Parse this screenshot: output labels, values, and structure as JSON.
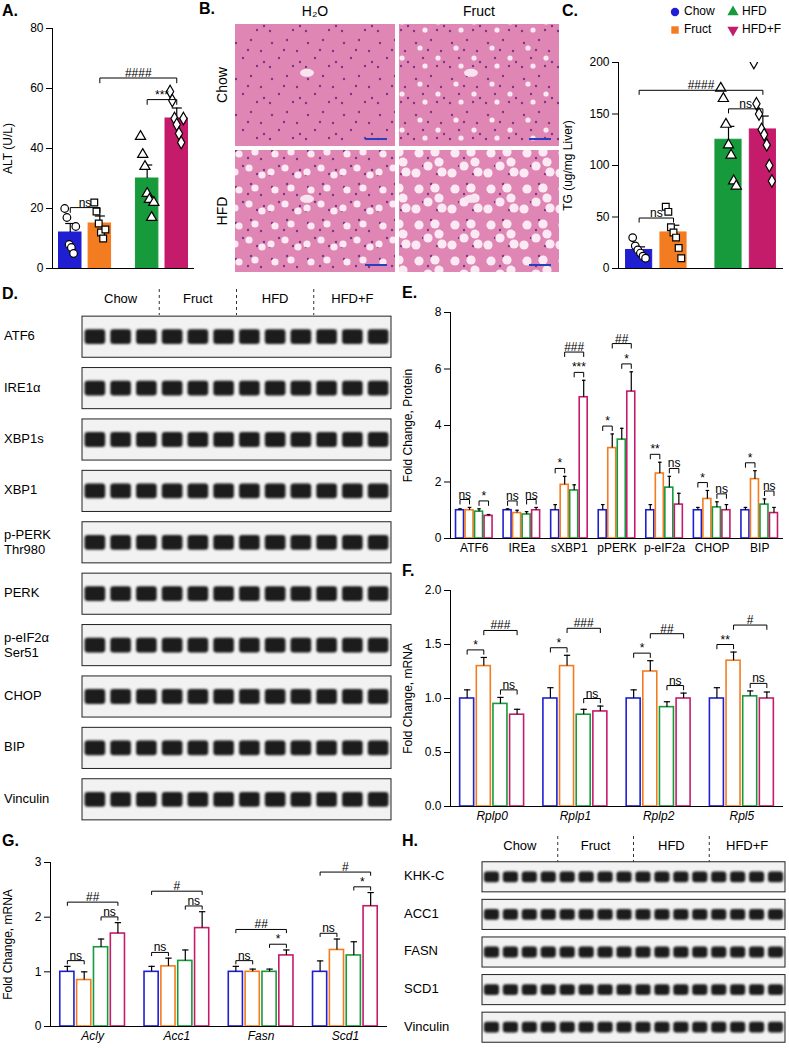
{
  "chart_data": [
    {
      "type": "bar",
      "title": "A.",
      "categories": [
        "Chow",
        "Fruct",
        "HFD",
        "HFD+F"
      ],
      "values": [
        12,
        15,
        30,
        50
      ],
      "errors": [
        3,
        2.5,
        4.5,
        3.5
      ],
      "points": [
        [
          20,
          17,
          8,
          7,
          5,
          14
        ],
        [
          22,
          19,
          15,
          12,
          10,
          13
        ],
        [
          44,
          38,
          34,
          25,
          23,
          17,
          22
        ],
        [
          59,
          56,
          50,
          48,
          45,
          42,
          50
        ]
      ],
      "point_markers": [
        "circle",
        "square",
        "triangle",
        "diamond"
      ],
      "colors": [
        "#1f1fd1",
        "#f47c20",
        "#179a3c",
        "#c51b6b"
      ],
      "ylabel": "ALT (U/L)",
      "ylim": [
        0,
        80
      ],
      "yticks": [
        0,
        20,
        40,
        60,
        80
      ],
      "tick_labels": "y",
      "annotations": [
        {
          "text": "ns",
          "from": "Chow",
          "to": "Fruct"
        },
        {
          "text": "***",
          "from": "HFD",
          "to": "HFD+F"
        },
        {
          "text": "####",
          "from": "Fruct",
          "to": "HFD+F"
        }
      ]
    },
    {
      "type": "bar",
      "title": "C.",
      "categories": [
        "Chow",
        "Fruct",
        "HFD",
        "HFD+F"
      ],
      "values": [
        18,
        35,
        125,
        135
      ],
      "errors": [
        3,
        7,
        13,
        13
      ],
      "points": [
        [
          30,
          22,
          18,
          15,
          12,
          10
        ],
        [
          60,
          55,
          40,
          35,
          30,
          20,
          10
        ],
        [
          175,
          165,
          140,
          120,
          110,
          85,
          80
        ],
        [
          200,
          160,
          150,
          135,
          130,
          120,
          100,
          85
        ]
      ],
      "point_markers": [
        "circle",
        "square",
        "triangle",
        "diamond"
      ],
      "colors": [
        "#1f1fd1",
        "#f47c20",
        "#179a3c",
        "#c51b6b"
      ],
      "ylabel": "TG (ug/mg Liver)",
      "ylim": [
        0,
        200
      ],
      "yticks": [
        0,
        50,
        100,
        150,
        200
      ],
      "tick_labels": "y",
      "annotations": [
        {
          "text": "ns",
          "from": "Chow",
          "to": "Fruct"
        },
        {
          "text": "ns",
          "from": "HFD",
          "to": "HFD+F"
        },
        {
          "text": "####",
          "from": "Chow",
          "to": "HFD+F"
        }
      ]
    },
    {
      "type": "bar",
      "title": "E.",
      "categories": [
        "ATF6",
        "IREa",
        "sXBP1",
        "pPERK",
        "p-eIF2a",
        "CHOP",
        "BIP"
      ],
      "series": [
        {
          "name": "Chow",
          "color": "#1f1fd1",
          "values": [
            1,
            1,
            1,
            1,
            1,
            1,
            1
          ],
          "errors": [
            0.05,
            0.05,
            0.2,
            0.2,
            0.2,
            0.1,
            0.1
          ]
        },
        {
          "name": "Fruct",
          "color": "#f47c20",
          "values": [
            1.0,
            0.9,
            1.9,
            3.2,
            2.3,
            1.4,
            2.1
          ],
          "errors": [
            0.1,
            0.1,
            0.3,
            0.5,
            0.4,
            0.3,
            0.3
          ]
        },
        {
          "name": "HFD",
          "color": "#179a3c",
          "values": [
            0.95,
            0.85,
            1.7,
            3.5,
            1.8,
            1.1,
            1.2
          ],
          "errors": [
            0.1,
            0.1,
            0.2,
            0.4,
            0.4,
            0.2,
            0.2
          ]
        },
        {
          "name": "HFD+F",
          "color": "#c51b6b",
          "values": [
            0.8,
            1.0,
            5.0,
            5.2,
            1.2,
            1.0,
            0.9
          ],
          "errors": [
            0.05,
            0.1,
            0.6,
            0.7,
            0.4,
            0.2,
            0.2
          ]
        }
      ],
      "ylabel": "Fold Change, Protein",
      "ylim": [
        0,
        8
      ],
      "yticks": [
        0,
        2,
        4,
        6,
        8
      ],
      "annotations": [
        {
          "category": "ATF6",
          "text": "ns",
          "from": "Chow",
          "to": "Fruct"
        },
        {
          "category": "ATF6",
          "text": "*",
          "from": "HFD",
          "to": "HFD+F"
        },
        {
          "category": "IREa",
          "text": "ns",
          "from": "Chow",
          "to": "Fruct"
        },
        {
          "category": "IREa",
          "text": "ns",
          "from": "HFD",
          "to": "HFD+F"
        },
        {
          "category": "sXBP1",
          "text": "*",
          "from": "Chow",
          "to": "Fruct"
        },
        {
          "category": "sXBP1",
          "text": "***",
          "from": "HFD",
          "to": "HFD+F"
        },
        {
          "category": "sXBP1",
          "text": "###",
          "from": "Fruct",
          "to": "HFD+F"
        },
        {
          "category": "pPERK",
          "text": "*",
          "from": "Chow",
          "to": "Fruct"
        },
        {
          "category": "pPERK",
          "text": "*",
          "from": "HFD",
          "to": "HFD+F"
        },
        {
          "category": "pPERK",
          "text": "##",
          "from": "Fruct",
          "to": "HFD+F"
        },
        {
          "category": "p-eIF2a",
          "text": "**",
          "from": "Chow",
          "to": "Fruct"
        },
        {
          "category": "p-eIF2a",
          "text": "ns",
          "from": "HFD",
          "to": "HFD+F"
        },
        {
          "category": "CHOP",
          "text": "*",
          "from": "Chow",
          "to": "Fruct"
        },
        {
          "category": "CHOP",
          "text": "ns",
          "from": "HFD",
          "to": "HFD+F"
        },
        {
          "category": "BIP",
          "text": "*",
          "from": "Chow",
          "to": "Fruct"
        },
        {
          "category": "BIP",
          "text": "ns",
          "from": "HFD",
          "to": "HFD+F"
        }
      ]
    },
    {
      "type": "bar",
      "title": "F.",
      "categories": [
        "Rplp0",
        "Rplp1",
        "Rplp2",
        "Rpl5"
      ],
      "series": [
        {
          "name": "Chow",
          "color": "#1f1fd1",
          "values": [
            1,
            1,
            1,
            1
          ],
          "errors": [
            0.08,
            0.1,
            0.08,
            0.1
          ]
        },
        {
          "name": "Fruct",
          "color": "#f47c20",
          "values": [
            1.3,
            1.3,
            1.25,
            1.35
          ],
          "errors": [
            0.08,
            0.1,
            0.1,
            0.08
          ]
        },
        {
          "name": "HFD",
          "color": "#179a3c",
          "values": [
            0.95,
            0.85,
            0.92,
            1.02
          ],
          "errors": [
            0.06,
            0.05,
            0.05,
            0.05
          ]
        },
        {
          "name": "HFD+F",
          "color": "#c51b6b",
          "values": [
            0.85,
            0.88,
            1.0,
            1.0
          ],
          "errors": [
            0.05,
            0.05,
            0.05,
            0.06
          ]
        }
      ],
      "ylabel": "Fold Change, mRNA",
      "ylim": [
        0,
        2
      ],
      "yticks": [
        {
          "value": 0,
          "label": "0.0"
        },
        0.5,
        {
          "value": 1,
          "label": "1.0"
        },
        1.5,
        {
          "value": 2,
          "label": "2.0"
        }
      ],
      "annotations": [
        {
          "category": "Rplp0",
          "text": "*",
          "from": "Chow",
          "to": "Fruct"
        },
        {
          "category": "Rplp0",
          "text": "ns",
          "from": "HFD",
          "to": "HFD+F"
        },
        {
          "category": "Rplp0",
          "text": "###",
          "from": "Fruct",
          "to": "HFD+F"
        },
        {
          "category": "Rplp1",
          "text": "*",
          "from": "Chow",
          "to": "Fruct"
        },
        {
          "category": "Rplp1",
          "text": "ns",
          "from": "HFD",
          "to": "HFD+F"
        },
        {
          "category": "Rplp1",
          "text": "###",
          "from": "Fruct",
          "to": "HFD+F"
        },
        {
          "category": "Rplp2",
          "text": "*",
          "from": "Chow",
          "to": "Fruct"
        },
        {
          "category": "Rplp2",
          "text": "ns",
          "from": "HFD",
          "to": "HFD+F"
        },
        {
          "category": "Rplp2",
          "text": "##",
          "from": "Fruct",
          "to": "HFD+F"
        },
        {
          "category": "Rpl5",
          "text": "**",
          "from": "Chow",
          "to": "Fruct"
        },
        {
          "category": "Rpl5",
          "text": "ns",
          "from": "HFD",
          "to": "HFD+F"
        },
        {
          "category": "Rpl5",
          "text": "#",
          "from": "Fruct",
          "to": "HFD+F"
        }
      ]
    },
    {
      "type": "bar",
      "title": "G.",
      "categories": [
        "Acly",
        "Acc1",
        "Fasn",
        "Scd1"
      ],
      "series": [
        {
          "name": "Chow",
          "color": "#1f1fd1",
          "values": [
            1,
            1,
            1,
            1
          ],
          "errors": [
            0.1,
            0.1,
            0.1,
            0.2
          ]
        },
        {
          "name": "Fruct",
          "color": "#f47c20",
          "values": [
            0.85,
            1.1,
            1.0,
            1.4
          ],
          "errors": [
            0.15,
            0.15,
            0.05,
            0.2
          ]
        },
        {
          "name": "HFD",
          "color": "#179a3c",
          "values": [
            1.45,
            1.2,
            1.0,
            1.3
          ],
          "errors": [
            0.15,
            0.2,
            0.05,
            0.25
          ]
        },
        {
          "name": "HFD+F",
          "color": "#c51b6b",
          "values": [
            1.7,
            1.8,
            1.3,
            2.2
          ],
          "errors": [
            0.2,
            0.3,
            0.1,
            0.25
          ]
        }
      ],
      "ylabel": "Fold Change, mRNA",
      "ylim": [
        0,
        3
      ],
      "yticks": [
        0,
        1,
        2,
        3
      ],
      "annotations": [
        {
          "category": "Acly",
          "text": "ns",
          "from": "Chow",
          "to": "Fruct"
        },
        {
          "category": "Acly",
          "text": "ns",
          "from": "HFD",
          "to": "HFD+F"
        },
        {
          "category": "Acly",
          "text": "##",
          "from": "Chow",
          "to": "HFD+F"
        },
        {
          "category": "Acc1",
          "text": "ns",
          "from": "Chow",
          "to": "Fruct"
        },
        {
          "category": "Acc1",
          "text": "ns",
          "from": "HFD",
          "to": "HFD+F"
        },
        {
          "category": "Acc1",
          "text": "#",
          "from": "Chow",
          "to": "HFD+F"
        },
        {
          "category": "Fasn",
          "text": "ns",
          "from": "Chow",
          "to": "Fruct"
        },
        {
          "category": "Fasn",
          "text": "*",
          "from": "HFD",
          "to": "HFD+F"
        },
        {
          "category": "Fasn",
          "text": "##",
          "from": "Chow",
          "to": "HFD+F"
        },
        {
          "category": "Scd1",
          "text": "ns",
          "from": "Chow",
          "to": "Fruct"
        },
        {
          "category": "Scd1",
          "text": "*",
          "from": "HFD",
          "to": "HFD+F"
        },
        {
          "category": "Scd1",
          "text": "#",
          "from": "Chow",
          "to": "HFD+F"
        }
      ]
    }
  ],
  "figure_legend": {
    "items": [
      {
        "name": "Chow",
        "color": "#1f1fd1",
        "marker": "circle"
      },
      {
        "name": "Fruct",
        "color": "#f47c20",
        "marker": "square"
      },
      {
        "name": "HFD",
        "color": "#179a3c",
        "marker": "triangle"
      },
      {
        "name": "HFD+F",
        "color": "#c51b6b",
        "marker": "triangle-down"
      }
    ]
  },
  "histology": {
    "title": "B.",
    "columns": [
      "H₂O",
      "Fruct"
    ],
    "rows": [
      "Chow",
      "HFD"
    ]
  },
  "blots": [
    {
      "title": "D.",
      "groups": [
        "Chow",
        "Fruct",
        "HFD",
        "HFD+F"
      ],
      "lanes_per_group": 3,
      "rows": [
        {
          "label": "ATF6"
        },
        {
          "label": "IRE1α"
        },
        {
          "label": "XBP1s"
        },
        {
          "label": "XBP1"
        },
        {
          "label": "p-PERK",
          "sublabel": "Thr980"
        },
        {
          "label": "PERK"
        },
        {
          "label": "p-eIF2α",
          "sublabel": "Ser51"
        },
        {
          "label": "CHOP"
        },
        {
          "label": "BIP"
        },
        {
          "label": "Vinculin"
        }
      ]
    },
    {
      "title": "H.",
      "groups": [
        "Chow",
        "Fruct",
        "HFD",
        "HFD+F"
      ],
      "lanes_per_group": 4,
      "rows": [
        {
          "label": "KHK-C"
        },
        {
          "label": "ACC1"
        },
        {
          "label": "FASN"
        },
        {
          "label": "SCD1"
        },
        {
          "label": "Vinculin"
        }
      ]
    }
  ]
}
